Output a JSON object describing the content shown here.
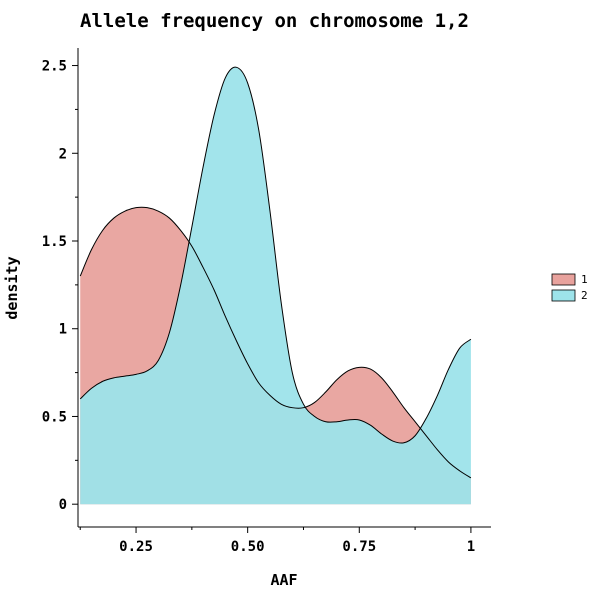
{
  "chart_data": {
    "type": "area",
    "title": "Allele frequency on chromosome 1,2",
    "xlabel": "AAF",
    "ylabel": "density",
    "xlim": [
      0.12,
      1.045
    ],
    "ylim": [
      -0.13,
      2.6
    ],
    "x_ticks": [
      {
        "value": 0.25,
        "label": "0.25"
      },
      {
        "value": 0.5,
        "label": "0.50"
      },
      {
        "value": 0.75,
        "label": "0.75"
      },
      {
        "value": 1.0,
        "label": "1"
      }
    ],
    "y_ticks": [
      {
        "value": 0,
        "label": "0"
      },
      {
        "value": 0.5,
        "label": "0.5"
      },
      {
        "value": 1.0,
        "label": "1"
      },
      {
        "value": 1.5,
        "label": "1.5"
      },
      {
        "value": 2.0,
        "label": "2"
      },
      {
        "value": 2.5,
        "label": "2.5"
      }
    ],
    "grid": false,
    "legend_position": "right",
    "series": [
      {
        "name": "1",
        "color": "#e8a29d",
        "x": [
          0.125,
          0.15,
          0.175,
          0.2,
          0.225,
          0.25,
          0.275,
          0.3,
          0.325,
          0.35,
          0.375,
          0.4,
          0.425,
          0.45,
          0.475,
          0.5,
          0.525,
          0.55,
          0.575,
          0.6,
          0.625,
          0.65,
          0.675,
          0.7,
          0.725,
          0.75,
          0.775,
          0.8,
          0.825,
          0.85,
          0.875,
          0.9,
          0.925,
          0.95,
          0.975,
          1.0
        ],
        "y": [
          1.3,
          1.45,
          1.56,
          1.63,
          1.67,
          1.69,
          1.69,
          1.67,
          1.63,
          1.56,
          1.47,
          1.35,
          1.22,
          1.07,
          0.93,
          0.8,
          0.69,
          0.62,
          0.57,
          0.55,
          0.55,
          0.58,
          0.64,
          0.71,
          0.76,
          0.78,
          0.77,
          0.72,
          0.64,
          0.55,
          0.47,
          0.39,
          0.31,
          0.24,
          0.19,
          0.15
        ]
      },
      {
        "name": "2",
        "color": "#9de3ea",
        "x": [
          0.125,
          0.15,
          0.175,
          0.2,
          0.225,
          0.25,
          0.275,
          0.3,
          0.325,
          0.35,
          0.375,
          0.4,
          0.425,
          0.45,
          0.475,
          0.5,
          0.525,
          0.55,
          0.575,
          0.6,
          0.625,
          0.65,
          0.675,
          0.7,
          0.725,
          0.75,
          0.775,
          0.8,
          0.825,
          0.85,
          0.875,
          0.9,
          0.925,
          0.95,
          0.975,
          1.0
        ],
        "y": [
          0.6,
          0.66,
          0.7,
          0.72,
          0.73,
          0.74,
          0.76,
          0.82,
          0.98,
          1.25,
          1.58,
          1.92,
          2.22,
          2.43,
          2.49,
          2.4,
          2.13,
          1.67,
          1.15,
          0.75,
          0.57,
          0.5,
          0.47,
          0.47,
          0.48,
          0.48,
          0.45,
          0.4,
          0.36,
          0.35,
          0.39,
          0.49,
          0.62,
          0.77,
          0.89,
          0.94
        ]
      }
    ]
  }
}
